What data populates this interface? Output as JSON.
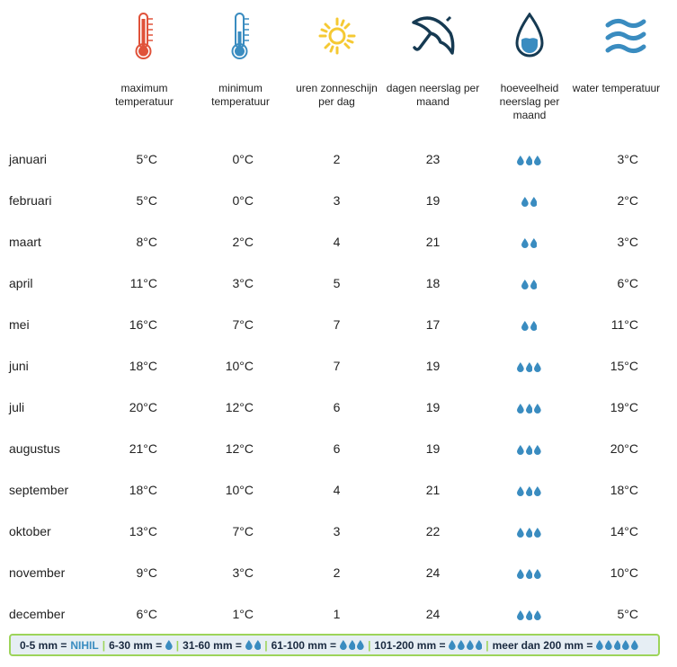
{
  "columns": [
    {
      "label": "maximum temperatuur",
      "icon": "thermometer-hot-icon"
    },
    {
      "label": "minimum temperatuur",
      "icon": "thermometer-cold-icon"
    },
    {
      "label": "uren zonneschijn per dag",
      "icon": "sun-icon"
    },
    {
      "label": "dagen neerslag per maand",
      "icon": "umbrella-icon"
    },
    {
      "label": "hoeveelheid neerslag per maand",
      "icon": "water-drop-icon"
    },
    {
      "label": "water temperatuur",
      "icon": "waves-icon"
    }
  ],
  "colors": {
    "hot": "#e0523a",
    "cold": "#3a8cc0",
    "sun": "#f5c933",
    "umbrella": "#163a52",
    "drop": "#3a8cc0",
    "legend_border": "#9dd45a"
  },
  "rows": [
    {
      "month": "januari",
      "max": "5°C",
      "min": "0°C",
      "sun": "2",
      "rain_days": "23",
      "drops": 3,
      "water": "3°C"
    },
    {
      "month": "februari",
      "max": "5°C",
      "min": "0°C",
      "sun": "3",
      "rain_days": "19",
      "drops": 2,
      "water": "2°C"
    },
    {
      "month": "maart",
      "max": "8°C",
      "min": "2°C",
      "sun": "4",
      "rain_days": "21",
      "drops": 2,
      "water": "3°C"
    },
    {
      "month": "april",
      "max": "11°C",
      "min": "3°C",
      "sun": "5",
      "rain_days": "18",
      "drops": 2,
      "water": "6°C"
    },
    {
      "month": "mei",
      "max": "16°C",
      "min": "7°C",
      "sun": "7",
      "rain_days": "17",
      "drops": 2,
      "water": "11°C"
    },
    {
      "month": "juni",
      "max": "18°C",
      "min": "10°C",
      "sun": "7",
      "rain_days": "19",
      "drops": 3,
      "water": "15°C"
    },
    {
      "month": "juli",
      "max": "20°C",
      "min": "12°C",
      "sun": "6",
      "rain_days": "19",
      "drops": 3,
      "water": "19°C"
    },
    {
      "month": "augustus",
      "max": "21°C",
      "min": "12°C",
      "sun": "6",
      "rain_days": "19",
      "drops": 3,
      "water": "20°C"
    },
    {
      "month": "september",
      "max": "18°C",
      "min": "10°C",
      "sun": "4",
      "rain_days": "21",
      "drops": 3,
      "water": "18°C"
    },
    {
      "month": "oktober",
      "max": "13°C",
      "min": "7°C",
      "sun": "3",
      "rain_days": "22",
      "drops": 3,
      "water": "14°C"
    },
    {
      "month": "november",
      "max": "9°C",
      "min": "3°C",
      "sun": "2",
      "rain_days": "24",
      "drops": 3,
      "water": "10°C"
    },
    {
      "month": "december",
      "max": "6°C",
      "min": "1°C",
      "sun": "1",
      "rain_days": "24",
      "drops": 3,
      "water": "5°C"
    }
  ],
  "legend": [
    {
      "range": "0-5 mm =",
      "text": "NIHIL",
      "drops": 0
    },
    {
      "range": "6-30 mm =",
      "drops": 1
    },
    {
      "range": "31-60 mm =",
      "drops": 2
    },
    {
      "range": "61-100 mm =",
      "drops": 3
    },
    {
      "range": "101-200 mm =",
      "drops": 4
    },
    {
      "range": "meer dan 200 mm =",
      "drops": 5
    }
  ]
}
